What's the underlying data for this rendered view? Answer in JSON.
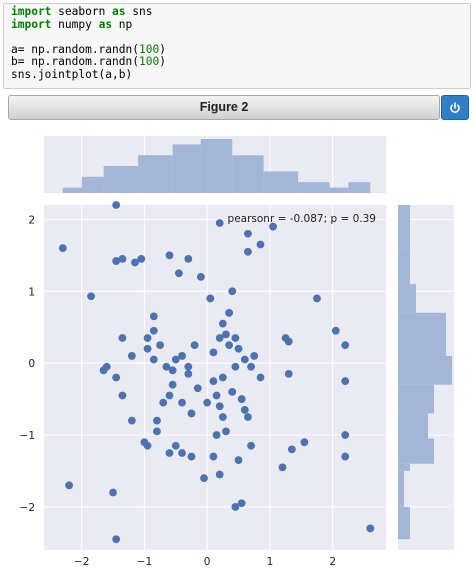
{
  "code": {
    "lines": [
      [
        {
          "t": "import",
          "c": "kw"
        },
        {
          "t": " seaborn "
        },
        {
          "t": "as",
          "c": "kw"
        },
        {
          "t": " sns"
        }
      ],
      [
        {
          "t": "import",
          "c": "kw"
        },
        {
          "t": " numpy "
        },
        {
          "t": "as",
          "c": "kw"
        },
        {
          "t": " np"
        }
      ],
      [],
      [
        {
          "t": "a= np.random.randn("
        },
        {
          "t": "100",
          "c": "num"
        },
        {
          "t": ")"
        }
      ],
      [
        {
          "t": "b= np.random.randn("
        },
        {
          "t": "100",
          "c": "num"
        },
        {
          "t": ")"
        }
      ],
      [
        {
          "t": "sns.jointplot(a,b)"
        }
      ]
    ]
  },
  "figure": {
    "title": "Figure 2",
    "power_icon": "power-icon",
    "colors": {
      "accent": "#2f7fc8",
      "panel": "#eaeaf2",
      "point": "#4c72b0",
      "bar": "#9fb3d5"
    }
  },
  "chart_data": {
    "type": "scatter",
    "annotation": "pearsonr = -0.087; p = 0.39",
    "xlim": [
      -2.6,
      2.85
    ],
    "ylim": [
      -2.6,
      2.2
    ],
    "xticks": [
      -2,
      -1,
      0,
      1,
      2
    ],
    "yticks": [
      -2,
      -1,
      0,
      1,
      2
    ],
    "grid": true,
    "points": [
      [
        -2.3,
        1.6
      ],
      [
        -1.45,
        2.2
      ],
      [
        -1.85,
        0.93
      ],
      [
        -1.6,
        -0.05
      ],
      [
        -1.45,
        1.42
      ],
      [
        -1.35,
        1.45
      ],
      [
        -1.15,
        1.4
      ],
      [
        -1.05,
        1.45
      ],
      [
        -0.6,
        1.5
      ],
      [
        -0.45,
        1.25
      ],
      [
        -0.3,
        1.45
      ],
      [
        -0.1,
        1.2
      ],
      [
        0.2,
        1.95
      ],
      [
        0.65,
        1.8
      ],
      [
        0.85,
        1.65
      ],
      [
        1.05,
        1.9
      ],
      [
        0.65,
        1.55
      ],
      [
        0.4,
        1.0
      ],
      [
        0.35,
        0.7
      ],
      [
        0.25,
        0.55
      ],
      [
        0.45,
        0.35
      ],
      [
        -0.85,
        0.65
      ],
      [
        -0.85,
        0.45
      ],
      [
        -0.95,
        0.35
      ],
      [
        -0.95,
        0.2
      ],
      [
        -1.35,
        0.35
      ],
      [
        -1.65,
        -0.1
      ],
      [
        -1.45,
        -0.2
      ],
      [
        -1.2,
        0.1
      ],
      [
        -0.85,
        0.05
      ],
      [
        -0.75,
        0.25
      ],
      [
        -0.65,
        -0.05
      ],
      [
        -0.5,
        0.05
      ],
      [
        -0.4,
        0.1
      ],
      [
        -0.2,
        0.25
      ],
      [
        0.1,
        0.15
      ],
      [
        0.2,
        0.35
      ],
      [
        0.3,
        0.4
      ],
      [
        0.35,
        0.25
      ],
      [
        0.45,
        -0.05
      ],
      [
        0.5,
        0.2
      ],
      [
        0.6,
        0.05
      ],
      [
        0.75,
        0.1
      ],
      [
        0.85,
        -0.2
      ],
      [
        1.25,
        0.35
      ],
      [
        1.3,
        0.3
      ],
      [
        1.3,
        -0.15
      ],
      [
        1.75,
        0.9
      ],
      [
        2.05,
        0.45
      ],
      [
        2.2,
        0.25
      ],
      [
        2.2,
        -0.25
      ],
      [
        -1.35,
        -0.45
      ],
      [
        -1.2,
        -0.8
      ],
      [
        -1.0,
        -1.1
      ],
      [
        -0.95,
        -1.15
      ],
      [
        -0.8,
        -0.95
      ],
      [
        -0.7,
        -0.55
      ],
      [
        -0.6,
        -0.45
      ],
      [
        -0.55,
        -0.3
      ],
      [
        -0.4,
        -0.55
      ],
      [
        -0.3,
        -0.15
      ],
      [
        -0.25,
        -0.7
      ],
      [
        -0.15,
        -0.35
      ],
      [
        0.0,
        -0.55
      ],
      [
        0.1,
        -0.25
      ],
      [
        0.15,
        -0.45
      ],
      [
        0.2,
        -0.6
      ],
      [
        0.25,
        -0.75
      ],
      [
        0.3,
        -0.95
      ],
      [
        0.15,
        -1.0
      ],
      [
        0.25,
        -0.2
      ],
      [
        0.4,
        -0.4
      ],
      [
        0.55,
        -0.5
      ],
      [
        0.6,
        -0.65
      ],
      [
        0.65,
        -0.75
      ],
      [
        0.7,
        -1.15
      ],
      [
        0.5,
        -1.35
      ],
      [
        -0.5,
        -1.15
      ],
      [
        -0.4,
        -1.25
      ],
      [
        -0.25,
        -1.3
      ],
      [
        -0.6,
        -1.25
      ],
      [
        -0.8,
        -0.8
      ],
      [
        0.1,
        -1.3
      ],
      [
        1.2,
        -1.45
      ],
      [
        1.35,
        -1.2
      ],
      [
        1.55,
        -1.1
      ],
      [
        2.2,
        -1.0
      ],
      [
        2.2,
        -1.3
      ],
      [
        -0.05,
        -1.6
      ],
      [
        0.2,
        -1.55
      ],
      [
        0.45,
        -2.0
      ],
      [
        0.55,
        -1.95
      ],
      [
        -1.5,
        -1.8
      ],
      [
        -1.45,
        -2.45
      ],
      [
        -2.2,
        -1.7
      ],
      [
        2.6,
        -2.3
      ],
      [
        -0.55,
        -0.1
      ],
      [
        0.05,
        0.9
      ],
      [
        -0.3,
        -0.05
      ],
      [
        0.7,
        -0.05
      ]
    ],
    "x_hist": {
      "edges": [
        -2.3,
        -2.0,
        -1.65,
        -1.1,
        -0.55,
        -0.1,
        0.4,
        0.9,
        1.45,
        1.95,
        2.25,
        2.6
      ],
      "counts": [
        1,
        3,
        5,
        7,
        9,
        10,
        7,
        4,
        2,
        1,
        2
      ]
    },
    "y_hist": {
      "edges": [
        -2.45,
        -2.0,
        -1.5,
        -1.4,
        -1.05,
        -0.7,
        -0.3,
        0.1,
        0.7,
        1.1,
        1.6,
        2.2
      ],
      "counts": [
        2,
        1,
        2,
        6,
        5,
        6,
        9,
        8,
        3,
        2,
        2
      ]
    }
  }
}
